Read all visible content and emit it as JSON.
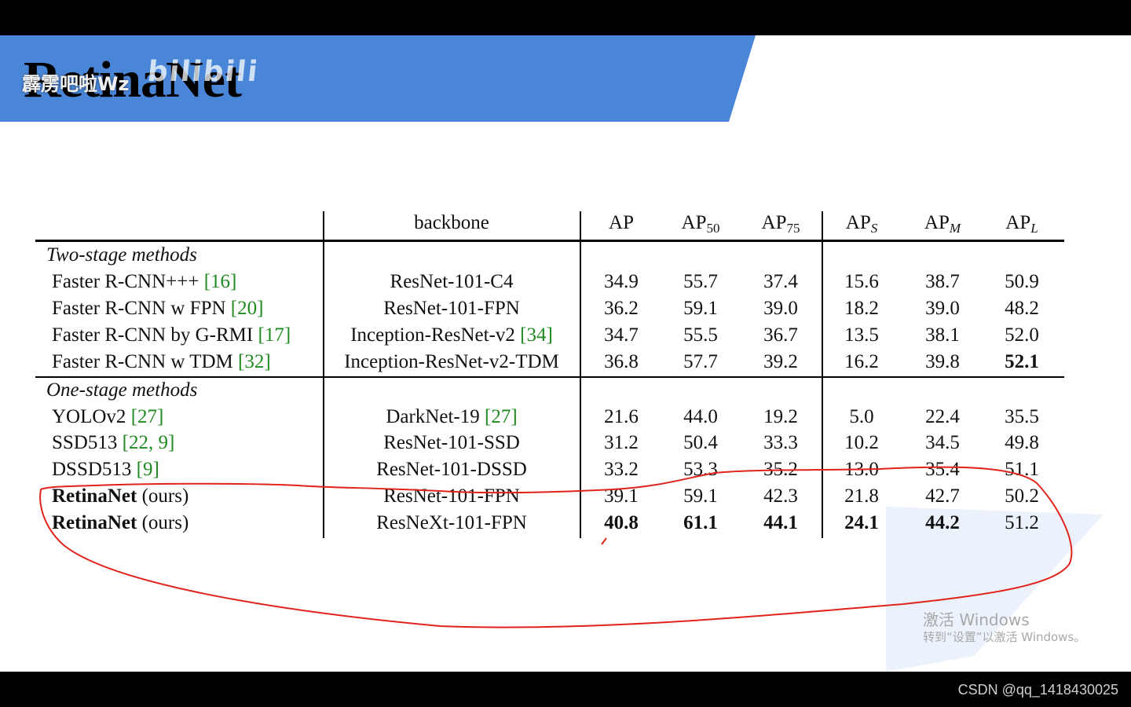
{
  "slide": {
    "title": "RetinaNet",
    "watermark_user": "霹雳吧啦Wz",
    "watermark_logo": "bilibili",
    "banner_color": "#4a86d8"
  },
  "table": {
    "header": {
      "backbone": "backbone",
      "ap": "AP",
      "ap50_base": "AP",
      "ap50_sub": "50",
      "ap75_base": "AP",
      "ap75_sub": "75",
      "aps_base": "AP",
      "aps_sub": "S",
      "apm_base": "AP",
      "apm_sub": "M",
      "apl_base": "AP",
      "apl_sub": "L"
    },
    "section_two_stage": "Two-stage methods",
    "section_one_stage": "One-stage methods",
    "rows": [
      {
        "name": "Faster R-CNN+++ ",
        "ref": "[16]",
        "backbone": "ResNet-101-C4",
        "bref": "",
        "v": [
          "34.9",
          "55.7",
          "37.4",
          "15.6",
          "38.7",
          "50.9"
        ]
      },
      {
        "name": "Faster R-CNN w FPN ",
        "ref": "[20]",
        "backbone": "ResNet-101-FPN",
        "bref": "",
        "v": [
          "36.2",
          "59.1",
          "39.0",
          "18.2",
          "39.0",
          "48.2"
        ]
      },
      {
        "name": "Faster R-CNN by G-RMI ",
        "ref": "[17]",
        "backbone": "Inception-ResNet-v2 ",
        "bref": "[34]",
        "v": [
          "34.7",
          "55.5",
          "36.7",
          "13.5",
          "38.1",
          "52.0"
        ]
      },
      {
        "name": "Faster R-CNN w TDM ",
        "ref": "[32]",
        "backbone": "Inception-ResNet-v2-TDM",
        "bref": "",
        "v": [
          "36.8",
          "57.7",
          "39.2",
          "16.2",
          "39.8",
          "52.1"
        ]
      },
      {
        "name": "YOLOv2 ",
        "ref": "[27]",
        "backbone": "DarkNet-19 ",
        "bref": "[27]",
        "v": [
          "21.6",
          "44.0",
          "19.2",
          "5.0",
          "22.4",
          "35.5"
        ]
      },
      {
        "name": "SSD513 ",
        "ref": "[22, 9]",
        "backbone": "ResNet-101-SSD",
        "bref": "",
        "v": [
          "31.2",
          "50.4",
          "33.3",
          "10.2",
          "34.5",
          "49.8"
        ]
      },
      {
        "name": "DSSD513 ",
        "ref": "[9]",
        "backbone": "ResNet-101-DSSD",
        "bref": "",
        "v": [
          "33.2",
          "53.3",
          "35.2",
          "13.0",
          "35.4",
          "51.1"
        ]
      },
      {
        "name": "RetinaNet",
        "ref": " (ours)",
        "backbone": "ResNet-101-FPN",
        "bref": "",
        "v": [
          "39.1",
          "59.1",
          "42.3",
          "21.8",
          "42.7",
          "50.2"
        ]
      },
      {
        "name": "RetinaNet",
        "ref": " (ours)",
        "backbone": "ResNeXt-101-FPN",
        "bref": "",
        "v": [
          "40.8",
          "61.1",
          "44.1",
          "24.1",
          "44.2",
          "51.2"
        ]
      }
    ]
  },
  "windows_activation": {
    "line1": "激活 Windows",
    "line2": "转到“设置”以激活 Windows。"
  },
  "footer": "CSDN @qq_1418430025",
  "colors": {
    "reference_green": "#1f8a1f",
    "annotation_red": "#e0241b"
  }
}
